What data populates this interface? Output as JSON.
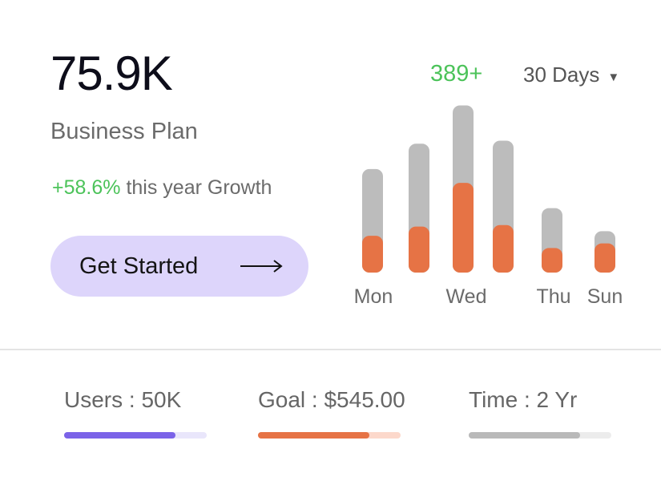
{
  "summary": {
    "value": "75.9K",
    "plan": "Business Plan",
    "growth_percent": "+58.6%",
    "growth_text": " this year Growth",
    "cta_label": "Get Started"
  },
  "header": {
    "count": "389+",
    "period": "30 Days"
  },
  "chart_data": {
    "type": "bar",
    "categories": [
      "Mon",
      "",
      "Wed",
      "",
      "Thu",
      "Sun"
    ],
    "tick_labels": [
      "Mon",
      "Wed",
      "Thu",
      "Sun"
    ],
    "series": [
      {
        "values": [
          135,
          168,
          218,
          172,
          84,
          54
        ],
        "color": "#bcbcbc"
      },
      {
        "values": [
          48,
          60,
          117,
          62,
          32,
          38
        ],
        "color": "#e67345"
      }
    ],
    "stacked": false,
    "ylim": [
      0,
      230
    ],
    "grid": false
  },
  "stats": [
    {
      "label": "Users : 50K",
      "progress": 0.78,
      "fill_color": "#7b63e8",
      "track_color": "#e9e6fb"
    },
    {
      "label": "Goal : $545.00",
      "progress": 0.78,
      "fill_color": "#e67345",
      "track_color": "#fcd8cb"
    },
    {
      "label": "Time : 2 Yr",
      "progress": 0.78,
      "fill_color": "#b9b9b9",
      "track_color": "#ececec"
    }
  ]
}
